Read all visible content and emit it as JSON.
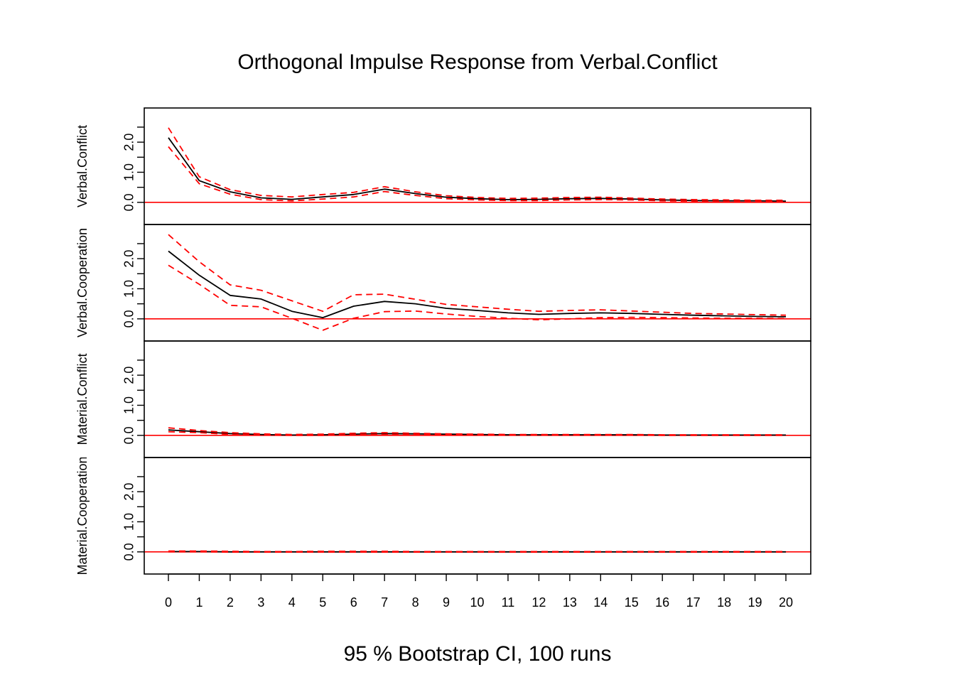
{
  "chart_data": {
    "type": "line",
    "title": "Orthogonal Impulse Response from Verbal.Conflict",
    "xlabel": "95 % Bootstrap CI,  100 runs",
    "x": [
      0,
      1,
      2,
      3,
      4,
      5,
      6,
      7,
      8,
      9,
      10,
      11,
      12,
      13,
      14,
      15,
      16,
      17,
      18,
      19,
      20
    ],
    "xlim": [
      0,
      20
    ],
    "ylim": [
      -0.5,
      2.9
    ],
    "yticks": [
      "0.0",
      "1.0",
      "2.0"
    ],
    "grid": false,
    "colors": {
      "response": "#000000",
      "ci": "#ff0000",
      "zero_line": "#ff0000",
      "frame": "#000000"
    },
    "panels": [
      {
        "ylabel": "Verbal.Conflict",
        "series": [
          {
            "values": [
              2.15,
              0.72,
              0.35,
              0.15,
              0.1,
              0.18,
              0.26,
              0.44,
              0.29,
              0.17,
              0.12,
              0.09,
              0.1,
              0.12,
              0.13,
              0.11,
              0.08,
              0.06,
              0.05,
              0.05,
              0.04
            ]
          },
          {
            "values": [
              2.48,
              0.85,
              0.42,
              0.23,
              0.18,
              0.26,
              0.33,
              0.52,
              0.35,
              0.22,
              0.16,
              0.13,
              0.14,
              0.16,
              0.17,
              0.14,
              0.11,
              0.09,
              0.08,
              0.07,
              0.07
            ]
          },
          {
            "values": [
              1.85,
              0.62,
              0.27,
              0.09,
              0.05,
              0.11,
              0.18,
              0.36,
              0.23,
              0.12,
              0.08,
              0.06,
              0.06,
              0.08,
              0.09,
              0.08,
              0.05,
              0.04,
              0.03,
              0.03,
              0.02
            ]
          }
        ]
      },
      {
        "ylabel": "Verbal.Cooperation",
        "series": [
          {
            "values": [
              2.25,
              1.45,
              0.78,
              0.66,
              0.25,
              0.04,
              0.42,
              0.58,
              0.5,
              0.35,
              0.28,
              0.2,
              0.15,
              0.18,
              0.2,
              0.18,
              0.15,
              0.12,
              0.1,
              0.08,
              0.07
            ]
          },
          {
            "values": [
              2.8,
              1.9,
              1.13,
              0.95,
              0.6,
              0.25,
              0.8,
              0.82,
              0.65,
              0.48,
              0.4,
              0.32,
              0.25,
              0.28,
              0.3,
              0.26,
              0.22,
              0.18,
              0.16,
              0.14,
              0.12
            ]
          },
          {
            "values": [
              1.78,
              1.15,
              0.45,
              0.4,
              0.02,
              -0.38,
              0.02,
              0.24,
              0.26,
              0.16,
              0.08,
              0.02,
              -0.03,
              0.0,
              0.04,
              0.05,
              0.04,
              0.03,
              0.02,
              0.02,
              0.01
            ]
          }
        ]
      },
      {
        "ylabel": "Material.Conflict",
        "series": [
          {
            "values": [
              0.18,
              0.12,
              0.06,
              0.03,
              0.01,
              0.02,
              0.04,
              0.06,
              0.05,
              0.04,
              0.03,
              0.02,
              0.02,
              0.02,
              0.02,
              0.02,
              0.01,
              0.01,
              0.01,
              0.01,
              0.01
            ]
          },
          {
            "values": [
              0.25,
              0.16,
              0.09,
              0.05,
              0.03,
              0.04,
              0.07,
              0.09,
              0.07,
              0.05,
              0.04,
              0.03,
              0.03,
              0.03,
              0.03,
              0.03,
              0.02,
              0.02,
              0.02,
              0.02,
              0.02
            ]
          },
          {
            "values": [
              0.12,
              0.09,
              0.03,
              0.01,
              0.0,
              0.0,
              0.02,
              0.03,
              0.03,
              0.02,
              0.01,
              0.01,
              0.01,
              0.01,
              0.01,
              0.01,
              0.0,
              0.0,
              0.0,
              0.0,
              0.0
            ]
          }
        ]
      },
      {
        "ylabel": "Material.Cooperation",
        "series": [
          {
            "values": [
              0.01,
              0.01,
              0.0,
              0.0,
              0.0,
              0.0,
              0.0,
              0.0,
              0.0,
              0.0,
              0.0,
              0.0,
              0.0,
              0.0,
              0.0,
              0.0,
              0.0,
              0.0,
              0.0,
              0.0,
              0.0
            ]
          },
          {
            "values": [
              0.03,
              0.03,
              0.02,
              0.01,
              0.01,
              0.02,
              0.02,
              0.02,
              0.01,
              0.01,
              0.01,
              0.01,
              0.01,
              0.01,
              0.01,
              0.01,
              0.01,
              0.01,
              0.01,
              0.01,
              0.01
            ]
          },
          {
            "values": [
              0.0,
              0.0,
              -0.01,
              -0.01,
              -0.01,
              -0.01,
              -0.01,
              -0.01,
              -0.01,
              -0.01,
              -0.01,
              -0.01,
              -0.01,
              -0.01,
              -0.01,
              -0.01,
              -0.01,
              -0.01,
              -0.01,
              -0.01,
              -0.01
            ]
          }
        ]
      }
    ]
  }
}
